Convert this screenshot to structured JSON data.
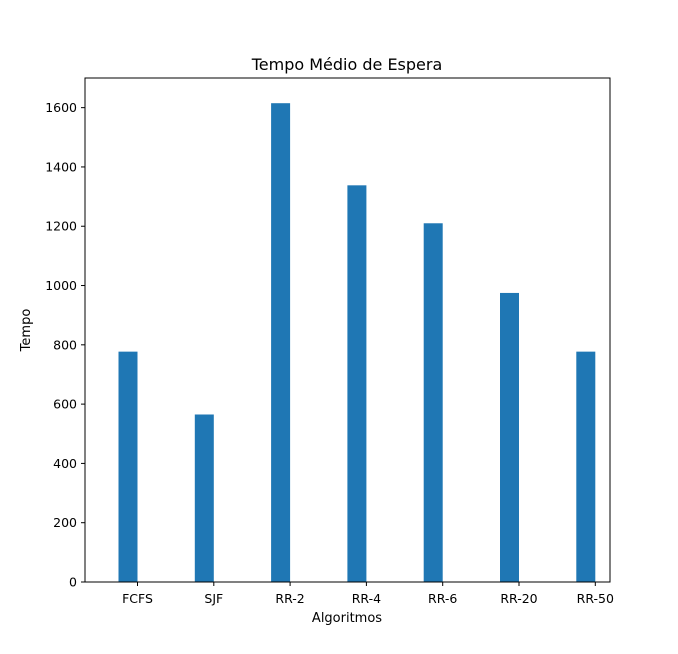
{
  "chart_data": {
    "type": "bar",
    "title": "Tempo Médio de Espera",
    "xlabel": "Algoritmos",
    "ylabel": "Tempo",
    "categories": [
      "FCFS",
      "SJF",
      "RR-2",
      "RR-4",
      "RR-6",
      "RR-20",
      "RR-50"
    ],
    "values": [
      777,
      565,
      1615,
      1338,
      1210,
      975,
      777
    ],
    "ylim": [
      0,
      1700
    ],
    "yticks": [
      0,
      200,
      400,
      600,
      800,
      1000,
      1200,
      1400,
      1600
    ],
    "grid": false,
    "bar_color": "#1f77b4"
  }
}
